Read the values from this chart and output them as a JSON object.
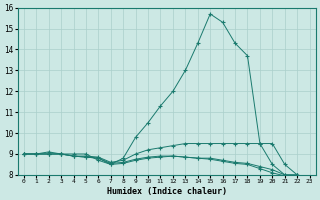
{
  "xlabel": "Humidex (Indice chaleur)",
  "bg_color": "#cce8e4",
  "grid_color": "#aacfcb",
  "line_color": "#1a7a6e",
  "xlim": [
    -0.5,
    23.5
  ],
  "ylim": [
    8,
    16
  ],
  "yticks": [
    8,
    9,
    10,
    11,
    12,
    13,
    14,
    15,
    16
  ],
  "xticks": [
    0,
    1,
    2,
    3,
    4,
    5,
    6,
    7,
    8,
    9,
    10,
    11,
    12,
    13,
    14,
    15,
    16,
    17,
    18,
    19,
    20,
    21,
    22,
    23
  ],
  "series": [
    {
      "x": [
        0,
        1,
        2,
        3,
        4,
        5,
        6,
        7,
        8,
        9,
        10,
        11,
        12,
        13,
        14,
        15,
        16,
        17,
        18,
        19,
        20,
        21,
        22,
        23
      ],
      "y": [
        9.0,
        9.0,
        9.0,
        9.0,
        9.0,
        9.0,
        8.7,
        8.5,
        8.8,
        9.8,
        10.5,
        11.3,
        12.0,
        13.0,
        14.3,
        15.7,
        15.3,
        14.3,
        13.7,
        9.5,
        9.5,
        8.5,
        8.0,
        7.8
      ],
      "linestyle": "-"
    },
    {
      "x": [
        0,
        1,
        2,
        3,
        4,
        5,
        6,
        7,
        8,
        9,
        10,
        11,
        12,
        13,
        14,
        15,
        16,
        17,
        18,
        19,
        20,
        21,
        22,
        23
      ],
      "y": [
        9.0,
        9.0,
        9.1,
        9.0,
        8.9,
        8.9,
        8.85,
        8.6,
        8.7,
        9.0,
        9.2,
        9.3,
        9.4,
        9.5,
        9.5,
        9.5,
        9.5,
        9.5,
        9.5,
        9.5,
        8.5,
        8.0,
        8.0,
        7.8
      ],
      "linestyle": "-"
    },
    {
      "x": [
        0,
        1,
        2,
        3,
        4,
        5,
        6,
        7,
        8,
        9,
        10,
        11,
        12,
        13,
        14,
        15,
        16,
        17,
        18,
        19,
        20,
        21,
        22,
        23
      ],
      "y": [
        9.0,
        9.0,
        9.0,
        9.0,
        8.9,
        8.85,
        8.8,
        8.55,
        8.6,
        8.75,
        8.85,
        8.9,
        8.9,
        8.85,
        8.8,
        8.8,
        8.7,
        8.6,
        8.55,
        8.4,
        8.25,
        8.0,
        8.0,
        7.8
      ],
      "linestyle": "-"
    },
    {
      "x": [
        0,
        1,
        2,
        3,
        4,
        5,
        6,
        7,
        8,
        9,
        10,
        11,
        12,
        13,
        14,
        15,
        16,
        17,
        18,
        19,
        20,
        21,
        22,
        23
      ],
      "y": [
        9.0,
        9.0,
        9.0,
        9.0,
        8.9,
        8.85,
        8.8,
        8.5,
        8.55,
        8.7,
        8.8,
        8.85,
        8.9,
        8.85,
        8.8,
        8.75,
        8.65,
        8.55,
        8.5,
        8.3,
        8.1,
        7.95,
        7.95,
        7.75
      ],
      "linestyle": "-"
    }
  ]
}
